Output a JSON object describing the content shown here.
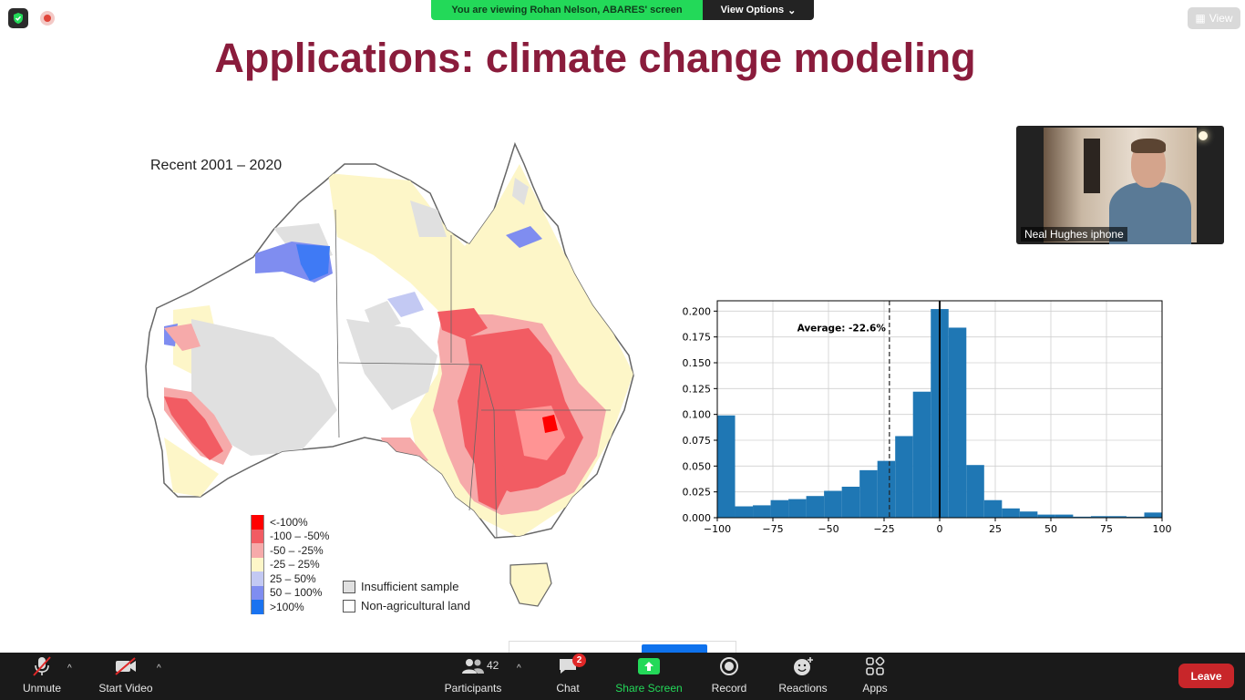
{
  "meeting": {
    "banner_text": "You are viewing Rohan Nelson, ABARES' screen",
    "view_options_label": "View Options",
    "view_label": "View"
  },
  "slide": {
    "title": "Applications: climate change modeling",
    "map_title": "Recent 2001 – 2020",
    "legend": [
      {
        "label": "<-100%",
        "color": "#ff0000"
      },
      {
        "label": "-100 – -50%",
        "color": "#f25c63"
      },
      {
        "label": "-50 – -25%",
        "color": "#f6aaaa"
      },
      {
        "label": "-25 – 25%",
        "color": "#fdf6c8"
      },
      {
        "label": "25 – 50%",
        "color": "#c3c9f3"
      },
      {
        "label": "50 – 100%",
        "color": "#7f8df0"
      },
      {
        "label": ">100%",
        "color": "#1a73f0"
      }
    ],
    "legend2": [
      {
        "label": "Insufficient sample",
        "color": "#e0e0e0"
      },
      {
        "label": "Non-agricultural land",
        "color": "#ffffff"
      }
    ]
  },
  "chart_data": {
    "type": "bar",
    "title": "",
    "xlabel": "",
    "ylabel": "",
    "xlim": [
      -100,
      100
    ],
    "ylim": [
      0,
      0.21
    ],
    "x_ticks": [
      -100,
      -75,
      -50,
      -25,
      0,
      25,
      50,
      75,
      100
    ],
    "y_ticks": [
      0.0,
      0.025,
      0.05,
      0.075,
      0.1,
      0.125,
      0.15,
      0.175,
      0.2
    ],
    "x_tick_labels": [
      "−100",
      "−75",
      "−50",
      "−25",
      "0",
      "25",
      "50",
      "75",
      "100"
    ],
    "y_tick_labels": [
      "0.000",
      "0.025",
      "0.050",
      "0.075",
      "0.100",
      "0.125",
      "0.150",
      "0.175",
      "0.200"
    ],
    "bin_width": 8,
    "bin_starts": [
      -100,
      -92,
      -84,
      -76,
      -68,
      -60,
      -52,
      -44,
      -36,
      -28,
      -20,
      -12,
      -4,
      4,
      12,
      20,
      28,
      36,
      44,
      52,
      60,
      68,
      76,
      84,
      92
    ],
    "values": [
      0.099,
      0.011,
      0.012,
      0.017,
      0.018,
      0.021,
      0.026,
      0.03,
      0.046,
      0.055,
      0.079,
      0.122,
      0.202,
      0.184,
      0.051,
      0.017,
      0.009,
      0.006,
      0.003,
      0.003,
      0.001,
      0.0015,
      0.0015,
      0.001,
      0.005
    ],
    "average_line": -22.6,
    "zero_line": 0,
    "annotation": "Average: -22.6%",
    "bar_color": "#1f77b4",
    "grid": true
  },
  "participant_video": {
    "name": "Neal Hughes iphone"
  },
  "toolbar": {
    "unmute_label": "Unmute",
    "start_video_label": "Start Video",
    "participants_label": "Participants",
    "participants_count": "42",
    "chat_label": "Chat",
    "chat_badge": "2",
    "share_label": "Share Screen",
    "record_label": "Record",
    "reactions_label": "Reactions",
    "apps_label": "Apps",
    "leave_label": "Leave"
  }
}
